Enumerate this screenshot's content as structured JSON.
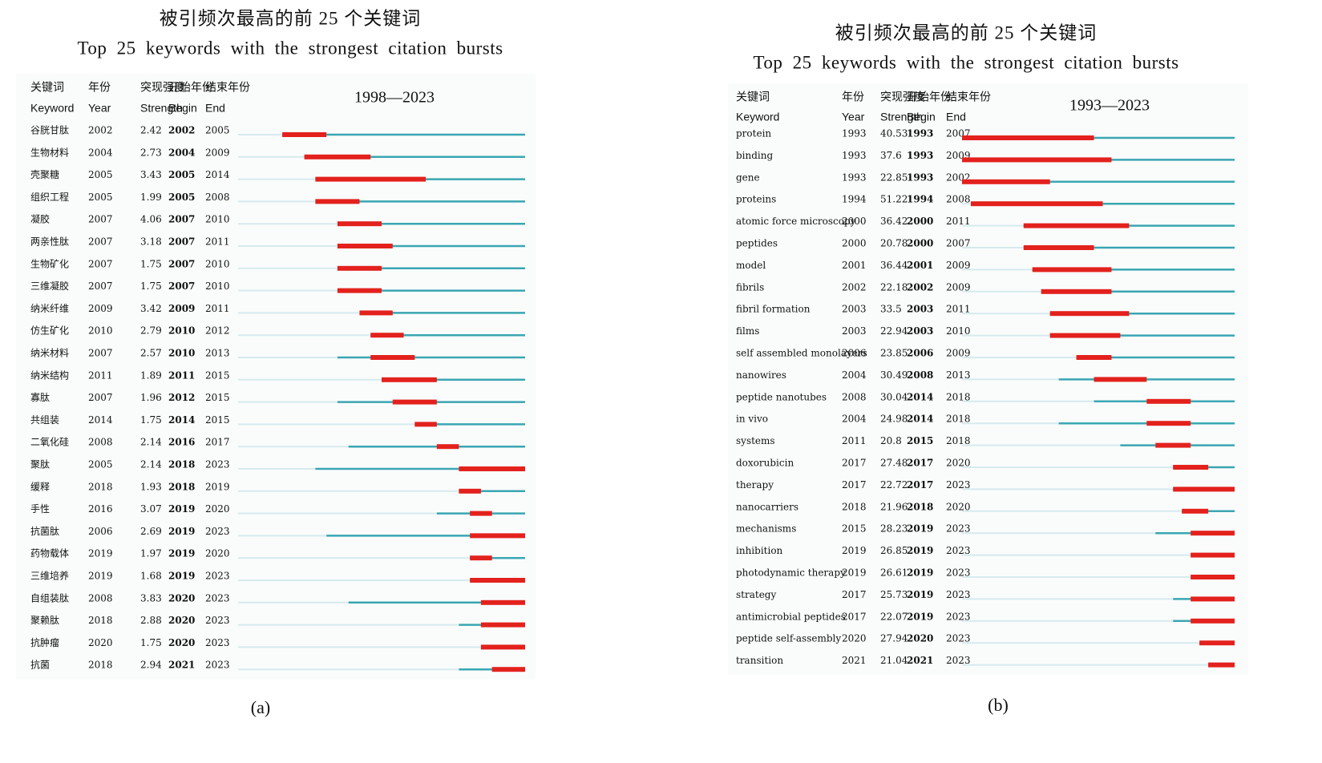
{
  "panels": [
    {
      "title_zh": "被引频次最高的前 25 个关键词",
      "title_en": "Top 25 keywords with the strongest citation bursts",
      "headers": [
        [
          "关键词",
          "Keyword"
        ],
        [
          "年份",
          "Year"
        ],
        [
          "突现强度",
          "Strength"
        ],
        [
          "开始年份",
          "Begin"
        ],
        [
          "结束年份",
          "End"
        ]
      ],
      "timeline": {
        "label": "1998—2023",
        "xlim": [
          1998,
          2023
        ]
      },
      "caption": "(a)",
      "rows": [
        {
          "keyword": "谷胱甘肽",
          "year": 2002,
          "strength": 2.42,
          "begin": 2002,
          "end": 2005
        },
        {
          "keyword": "生物材料",
          "year": 2004,
          "strength": 2.73,
          "begin": 2004,
          "end": 2009
        },
        {
          "keyword": "壳聚糖",
          "year": 2005,
          "strength": 3.43,
          "begin": 2005,
          "end": 2014
        },
        {
          "keyword": "组织工程",
          "year": 2005,
          "strength": 1.99,
          "begin": 2005,
          "end": 2008
        },
        {
          "keyword": "凝胶",
          "year": 2007,
          "strength": 4.06,
          "begin": 2007,
          "end": 2010
        },
        {
          "keyword": "两亲性肽",
          "year": 2007,
          "strength": 3.18,
          "begin": 2007,
          "end": 2011
        },
        {
          "keyword": "生物矿化",
          "year": 2007,
          "strength": 1.75,
          "begin": 2007,
          "end": 2010
        },
        {
          "keyword": "三维凝胶",
          "year": 2007,
          "strength": 1.75,
          "begin": 2007,
          "end": 2010
        },
        {
          "keyword": "纳米纤维",
          "year": 2009,
          "strength": 3.42,
          "begin": 2009,
          "end": 2011
        },
        {
          "keyword": "仿生矿化",
          "year": 2010,
          "strength": 2.79,
          "begin": 2010,
          "end": 2012
        },
        {
          "keyword": "纳米材料",
          "year": 2007,
          "strength": 2.57,
          "begin": 2010,
          "end": 2013
        },
        {
          "keyword": "纳米结构",
          "year": 2011,
          "strength": 1.89,
          "begin": 2011,
          "end": 2015
        },
        {
          "keyword": "寡肽",
          "year": 2007,
          "strength": 1.96,
          "begin": 2012,
          "end": 2015
        },
        {
          "keyword": "共组装",
          "year": 2014,
          "strength": 1.75,
          "begin": 2014,
          "end": 2015
        },
        {
          "keyword": "二氧化硅",
          "year": 2008,
          "strength": 2.14,
          "begin": 2016,
          "end": 2017
        },
        {
          "keyword": "聚肽",
          "year": 2005,
          "strength": 2.14,
          "begin": 2018,
          "end": 2023
        },
        {
          "keyword": "缓释",
          "year": 2018,
          "strength": 1.93,
          "begin": 2018,
          "end": 2019
        },
        {
          "keyword": "手性",
          "year": 2016,
          "strength": 3.07,
          "begin": 2019,
          "end": 2020
        },
        {
          "keyword": "抗菌肽",
          "year": 2006,
          "strength": 2.69,
          "begin": 2019,
          "end": 2023
        },
        {
          "keyword": "药物载体",
          "year": 2019,
          "strength": 1.97,
          "begin": 2019,
          "end": 2020
        },
        {
          "keyword": "三维培养",
          "year": 2019,
          "strength": 1.68,
          "begin": 2019,
          "end": 2023
        },
        {
          "keyword": "自组装肽",
          "year": 2008,
          "strength": 3.83,
          "begin": 2020,
          "end": 2023
        },
        {
          "keyword": "聚赖肽",
          "year": 2018,
          "strength": 2.88,
          "begin": 2020,
          "end": 2023
        },
        {
          "keyword": "抗肿瘤",
          "year": 2020,
          "strength": 1.75,
          "begin": 2020,
          "end": 2023
        },
        {
          "keyword": "抗菌",
          "year": 2018,
          "strength": 2.94,
          "begin": 2021,
          "end": 2023
        }
      ]
    },
    {
      "title_zh": "被引频次最高的前 25 个关键词",
      "title_en": "Top 25 keywords with the strongest citation bursts",
      "headers": [
        [
          "关键词",
          "Keyword"
        ],
        [
          "年份",
          "Year"
        ],
        [
          "突现强度",
          "Strength"
        ],
        [
          "开始年份",
          "Begin"
        ],
        [
          "结束年份",
          "End"
        ]
      ],
      "timeline": {
        "label": "1993—2023",
        "xlim": [
          1993,
          2023
        ]
      },
      "caption": "(b)",
      "rows": [
        {
          "keyword": "protein",
          "year": 1993,
          "strength": 40.53,
          "begin": 1993,
          "end": 2007
        },
        {
          "keyword": "binding",
          "year": 1993,
          "strength": 37.6,
          "begin": 1993,
          "end": 2009
        },
        {
          "keyword": "gene",
          "year": 1993,
          "strength": 22.85,
          "begin": 1993,
          "end": 2002
        },
        {
          "keyword": "proteins",
          "year": 1994,
          "strength": 51.22,
          "begin": 1994,
          "end": 2008
        },
        {
          "keyword": "atomic force microscopy",
          "year": 2000,
          "strength": 36.42,
          "begin": 2000,
          "end": 2011
        },
        {
          "keyword": "peptides",
          "year": 2000,
          "strength": 20.78,
          "begin": 2000,
          "end": 2007
        },
        {
          "keyword": "model",
          "year": 2001,
          "strength": 36.44,
          "begin": 2001,
          "end": 2009
        },
        {
          "keyword": "fibrils",
          "year": 2002,
          "strength": 22.18,
          "begin": 2002,
          "end": 2009
        },
        {
          "keyword": "fibril formation",
          "year": 2003,
          "strength": 33.5,
          "begin": 2003,
          "end": 2011
        },
        {
          "keyword": "films",
          "year": 2003,
          "strength": 22.94,
          "begin": 2003,
          "end": 2010
        },
        {
          "keyword": "self assembled monolayers",
          "year": 2006,
          "strength": 23.85,
          "begin": 2006,
          "end": 2009
        },
        {
          "keyword": "nanowires",
          "year": 2004,
          "strength": 30.49,
          "begin": 2008,
          "end": 2013
        },
        {
          "keyword": "peptide nanotubes",
          "year": 2008,
          "strength": 30.04,
          "begin": 2014,
          "end": 2018
        },
        {
          "keyword": "in vivo",
          "year": 2004,
          "strength": 24.98,
          "begin": 2014,
          "end": 2018
        },
        {
          "keyword": "systems",
          "year": 2011,
          "strength": 20.8,
          "begin": 2015,
          "end": 2018
        },
        {
          "keyword": "doxorubicin",
          "year": 2017,
          "strength": 27.48,
          "begin": 2017,
          "end": 2020
        },
        {
          "keyword": "therapy",
          "year": 2017,
          "strength": 22.72,
          "begin": 2017,
          "end": 2023
        },
        {
          "keyword": "nanocarriers",
          "year": 2018,
          "strength": 21.96,
          "begin": 2018,
          "end": 2020
        },
        {
          "keyword": "mechanisms",
          "year": 2015,
          "strength": 28.23,
          "begin": 2019,
          "end": 2023
        },
        {
          "keyword": "inhibition",
          "year": 2019,
          "strength": 26.85,
          "begin": 2019,
          "end": 2023
        },
        {
          "keyword": "photodynamic therapy",
          "year": 2019,
          "strength": 26.61,
          "begin": 2019,
          "end": 2023
        },
        {
          "keyword": "strategy",
          "year": 2017,
          "strength": 25.73,
          "begin": 2019,
          "end": 2023
        },
        {
          "keyword": "antimicrobial peptides",
          "year": 2017,
          "strength": 22.07,
          "begin": 2019,
          "end": 2023
        },
        {
          "keyword": "peptide self-assembly",
          "year": 2020,
          "strength": 27.94,
          "begin": 2020,
          "end": 2023
        },
        {
          "keyword": "transition",
          "year": 2021,
          "strength": 21.04,
          "begin": 2021,
          "end": 2023
        }
      ]
    }
  ]
}
